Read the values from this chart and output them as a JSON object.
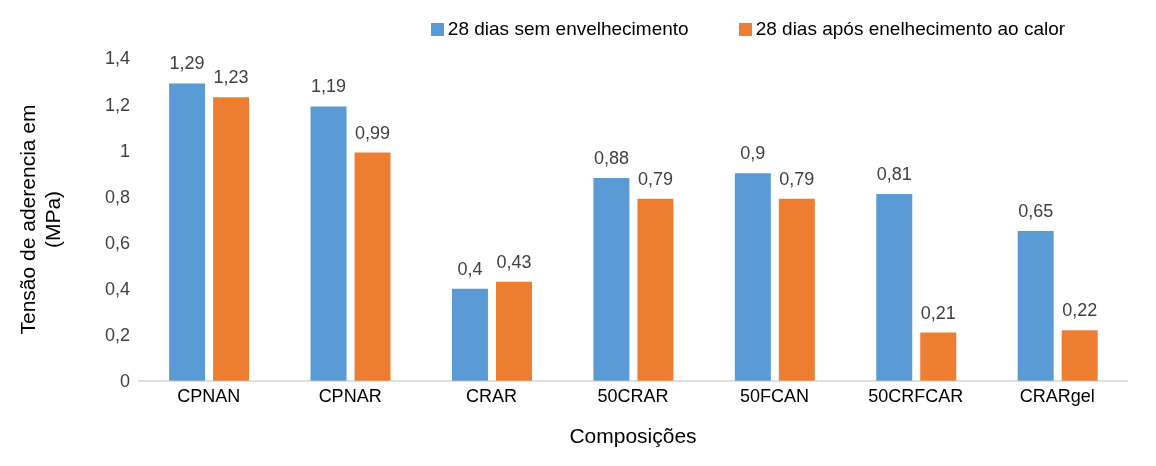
{
  "chart_data": {
    "type": "bar",
    "xlabel": "Composições",
    "ylabel": "Tensão de aderencia em (MPa)",
    "categories": [
      "CPNAN",
      "CPNAR",
      "CRAR",
      "50CRAR",
      "50FCAN",
      "50CRFCAR",
      "CRARgel"
    ],
    "series": [
      {
        "name": "28 dias sem envelhecimento",
        "color": "#5b9bd5",
        "values": [
          1.29,
          1.19,
          0.4,
          0.88,
          0.9,
          0.81,
          0.65
        ],
        "value_labels": [
          "1,29",
          "1,19",
          "0,4",
          "0,88",
          "0,9",
          "0,81",
          "0,65"
        ]
      },
      {
        "name": "28 dias após enelhecimento ao calor",
        "color": "#ed7d31",
        "values": [
          1.23,
          0.99,
          0.43,
          0.79,
          0.79,
          0.21,
          0.22
        ],
        "value_labels": [
          "1,23",
          "0,99",
          "0,43",
          "0,79",
          "0,79",
          "0,21",
          "0,22"
        ]
      }
    ],
    "ylim": [
      0,
      1.4
    ],
    "yticks": [
      {
        "value": 0,
        "label": "0"
      },
      {
        "value": 0.2,
        "label": "0,2"
      },
      {
        "value": 0.4,
        "label": "0,4"
      },
      {
        "value": 0.6,
        "label": "0,6"
      },
      {
        "value": 0.8,
        "label": "0,8"
      },
      {
        "value": 1,
        "label": "1"
      },
      {
        "value": 1.2,
        "label": "1,2"
      },
      {
        "value": 1.4,
        "label": "1,4"
      }
    ],
    "grid": false,
    "legend": "top"
  }
}
